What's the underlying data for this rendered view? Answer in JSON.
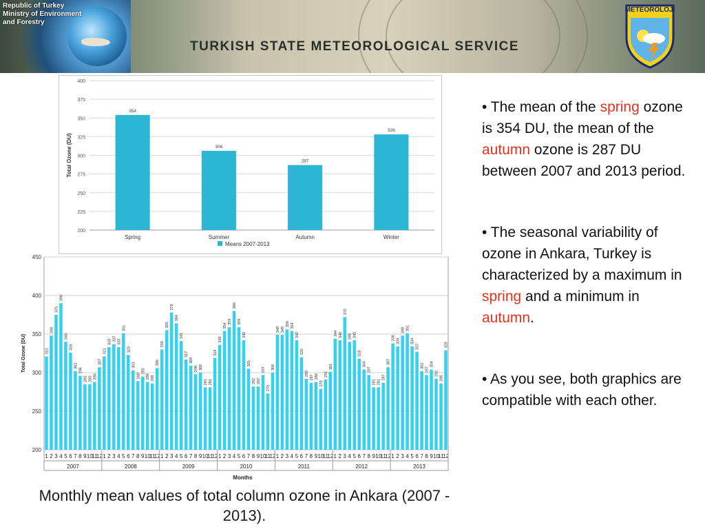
{
  "banner": {
    "gov_line1": "Republic of Turkey",
    "gov_line2": "Ministry of Environment",
    "gov_line3": "and Forestry",
    "title": "TURKISH STATE METEOROLOGICAL SERVICE",
    "logo_label": "METEOROLOJİ"
  },
  "chart_data": [
    {
      "type": "bar",
      "categories": [
        "Spring",
        "Summer",
        "Autumn",
        "Winter"
      ],
      "series": [
        {
          "name": "Means 2007-2013",
          "values": [
            354,
            306,
            287,
            328
          ]
        }
      ],
      "ylabel": "Total Ozone (DU)",
      "ylim": [
        200,
        400
      ],
      "yticks": [
        200,
        225,
        250,
        275,
        300,
        325,
        350,
        375,
        400
      ],
      "grid": true,
      "legend": "bottom",
      "bar_color": "#2db5d6"
    },
    {
      "type": "bar",
      "years": [
        "2007",
        "2008",
        "2009",
        "2010",
        "2011",
        "2012",
        "2013"
      ],
      "month_labels": [
        "1",
        "2",
        "3",
        "4",
        "5",
        "6",
        "7",
        "8",
        "9",
        "10",
        "11",
        "12"
      ],
      "values": [
        321,
        348,
        375,
        390,
        340,
        326,
        302,
        296,
        285,
        285,
        288,
        307,
        321,
        333,
        337,
        333,
        351,
        323,
        303,
        289,
        295,
        288,
        286,
        306,
        330,
        355,
        378,
        364,
        341,
        317,
        309,
        298,
        300,
        281,
        281,
        319,
        336,
        354,
        359,
        380,
        359,
        342,
        305,
        282,
        282,
        297,
        273,
        300,
        349,
        349,
        356,
        354,
        342,
        320,
        292,
        287,
        288,
        279,
        291,
        301,
        344,
        342,
        372,
        340,
        342,
        318,
        304,
        297,
        281,
        281,
        287,
        307,
        338,
        334,
        348,
        351,
        334,
        327,
        302,
        297,
        304,
        292,
        286,
        329
      ],
      "value_labels": [
        "321",
        "348",
        "375",
        "390",
        "340",
        "326",
        "302",
        "296",
        "285",
        "285",
        "288",
        "307",
        "321",
        "333",
        "337",
        "333",
        "351",
        "323",
        "303",
        "289",
        "295",
        "288",
        "286",
        "306",
        "330",
        "355",
        "378",
        "364",
        "341",
        "317",
        "309",
        "298",
        "300",
        "281",
        "281",
        "319",
        "336",
        "354",
        "359",
        "380",
        "359",
        "342",
        "305",
        "282",
        "282",
        "297",
        "273",
        "300",
        "349",
        "349",
        "356",
        "354",
        "342",
        "320",
        "292",
        "287",
        "288",
        "279",
        "291",
        "301",
        "344",
        "342",
        "372",
        "340",
        "342",
        "318",
        "304",
        "297",
        "281",
        "281",
        "287",
        "307",
        "338",
        "334",
        "348",
        "351",
        "334",
        "327",
        "302",
        "297",
        "304",
        "292",
        "286",
        "329"
      ],
      "xlabel": "Months",
      "ylabel": "Total Ozone (DU)",
      "ylim": [
        200,
        450
      ],
      "yticks": [
        200,
        250,
        300,
        350,
        400,
        450
      ],
      "grid": true,
      "bar_color": "#35d1ee"
    }
  ],
  "caption": "Monthly mean values of total column ozone in Ankara (2007 - 2013).",
  "notes": [
    {
      "parts": [
        {
          "t": "• The mean of the ",
          "hl": false
        },
        {
          "t": "spring",
          "hl": true
        },
        {
          "t": " ozone is 354 DU, the mean of the ",
          "hl": false
        },
        {
          "t": "autumn",
          "hl": true
        },
        {
          "t": " ozone is 287 DU between 2007 and 2013 period.",
          "hl": false
        }
      ]
    },
    {
      "parts": [
        {
          "t": "• The seasonal variability of ozone in Ankara, Turkey is characterized by a maximum in ",
          "hl": false
        },
        {
          "t": "spring",
          "hl": true
        },
        {
          "t": " and a minimum in ",
          "hl": false
        },
        {
          "t": "autumn",
          "hl": true
        },
        {
          "t": ".",
          "hl": false
        }
      ]
    },
    {
      "parts": [
        {
          "t": "• As you see, both graphics are compatible with each other.",
          "hl": false
        }
      ]
    }
  ]
}
